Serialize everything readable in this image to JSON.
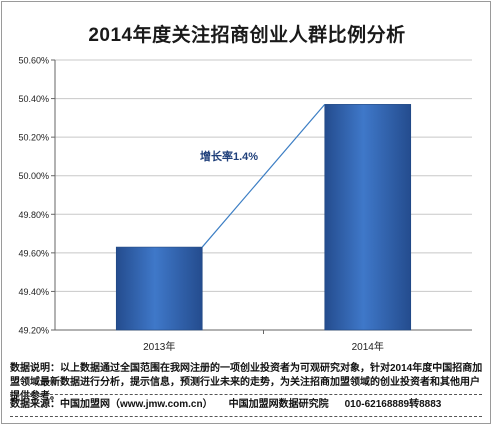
{
  "chart_data": {
    "type": "bar",
    "title": "2014年度关注招商创业人群比例分析",
    "categories": [
      "2013年",
      "2014年"
    ],
    "values": [
      49.63,
      50.37
    ],
    "ylim": [
      49.2,
      50.6
    ],
    "yticks": [
      49.2,
      49.4,
      49.6,
      49.8,
      50.0,
      50.2,
      50.4,
      50.6
    ],
    "ytick_labels": [
      "49.20%",
      "49.40%",
      "49.60%",
      "49.80%",
      "50.00%",
      "50.20%",
      "50.40%",
      "50.60%"
    ],
    "annotation": "增长率1.4%",
    "grid": true,
    "colors": {
      "bar": "#3f78c9",
      "bar_dark": "#244c8e",
      "trend_line": "#3c7ec4",
      "annotation": "#1f3f7a"
    }
  },
  "footer": {
    "note": "数据说明：以上数据通过全国范围在我网注册的一项创业投资者为可观研究对象，针对2014年度中国招商加盟领域最新数据进行分析，提示信息，预测行业未来的走势，为关注招商加盟领域的创业投资者和其他用户提供参考。",
    "source": "数据来源：中国加盟网（www.jmw.com.cn）",
    "institute": "中国加盟网数据研究院",
    "phone": "010-62168889转8883"
  }
}
